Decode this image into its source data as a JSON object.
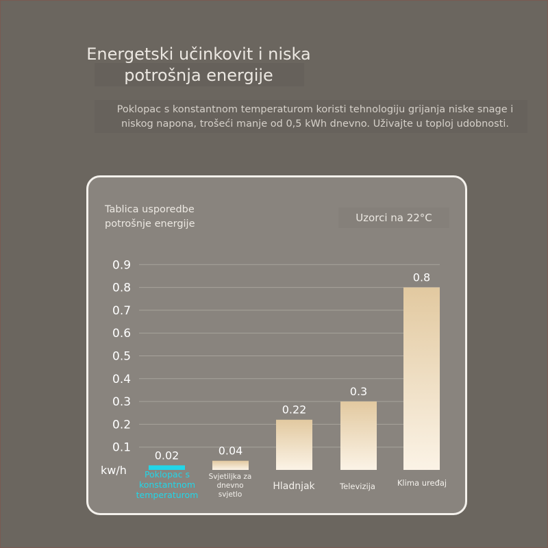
{
  "header": {
    "title_line1": "Energetski učinkovit i niska",
    "title_line2": "potrošnja energije",
    "description_line1": "Poklopac s konstantnom temperaturom koristi tehnologiju grijanja niske snage i",
    "description_line2": "niskog napona, trošeći manje od 0,5 kWh dnevno. Uživajte u toploj udobnosti."
  },
  "card": {
    "title_line1": "Tablica usporedbe",
    "title_line2": "potrošnje energije",
    "samples_label": "Uzorci na 22°C"
  },
  "colors": {
    "highlight": "#22d6e8",
    "bar_top": "#e2c9a0",
    "bar_bottom": "#fbf3e6",
    "gridline": "#a8a39c"
  },
  "chart_data": {
    "type": "bar",
    "unit_label": "kw/h",
    "ylim": [
      0,
      0.9
    ],
    "y_ticks": [
      "0.1",
      "0.2",
      "0.3",
      "0.4",
      "0.5",
      "0.6",
      "0.7",
      "0.8",
      "0.9"
    ],
    "categories": [
      [
        "Poklopac s",
        "konstantnom",
        "temperaturom"
      ],
      [
        "Svjetiljka za",
        "dnevno",
        "svjetlo"
      ],
      [
        "Hladnjak"
      ],
      [
        "Televizija"
      ],
      [
        "Klima uređaj"
      ]
    ],
    "values": [
      0.02,
      0.04,
      0.22,
      0.3,
      0.8
    ],
    "value_labels": [
      "0.02",
      "0.04",
      "0.22",
      "0.3",
      "0.8"
    ],
    "highlight_index": 0,
    "grid": true
  }
}
